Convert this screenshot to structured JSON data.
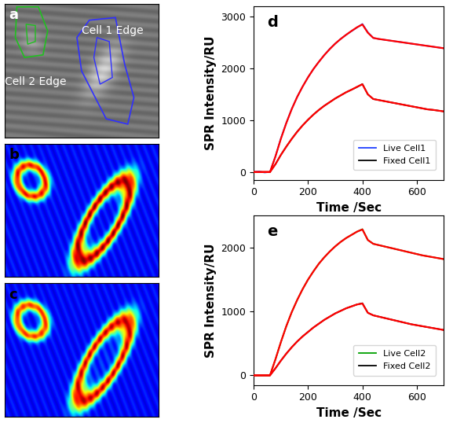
{
  "images": [
    {
      "panel": "a",
      "annotations": [
        "Cell 1 Edge",
        "Cell 2 Edge"
      ]
    },
    {
      "panel": "b"
    },
    {
      "panel": "c"
    }
  ],
  "chart_data": [
    {
      "type": "line",
      "panel": "d",
      "x_label": "Time /Sec",
      "y_label": "SPR Intensity/RU",
      "xlim": [
        0,
        700
      ],
      "xticks": [
        0,
        200,
        400,
        600
      ],
      "ylim": [
        -150,
        3200
      ],
      "yticks": [
        0,
        1000,
        2000,
        3000
      ],
      "legend": "lower right",
      "x": [
        0,
        20,
        40,
        60,
        80,
        100,
        120,
        140,
        160,
        180,
        200,
        220,
        240,
        260,
        280,
        300,
        320,
        340,
        360,
        380,
        400,
        420,
        440,
        460,
        480,
        500,
        520,
        540,
        560,
        580,
        600,
        620,
        640,
        660,
        680,
        700
      ],
      "series": [
        {
          "name": "Live Cell1",
          "color": "#1f3fff",
          "values": [
            0,
            10,
            -10,
            0,
            300,
            650,
            950,
            1220,
            1450,
            1650,
            1830,
            1990,
            2130,
            2260,
            2380,
            2480,
            2570,
            2650,
            2720,
            2790,
            2860,
            2700,
            2590,
            2570,
            2555,
            2540,
            2525,
            2510,
            2495,
            2480,
            2465,
            2450,
            2435,
            2420,
            2405,
            2390
          ]
        },
        {
          "name": "Fixed Cell1",
          "color": "#000000",
          "values": [
            0,
            0,
            0,
            0,
            150,
            330,
            490,
            640,
            780,
            900,
            1010,
            1110,
            1200,
            1280,
            1350,
            1420,
            1480,
            1540,
            1590,
            1640,
            1700,
            1500,
            1410,
            1390,
            1370,
            1350,
            1330,
            1310,
            1290,
            1270,
            1250,
            1230,
            1210,
            1200,
            1185,
            1170
          ]
        },
        {
          "color": "#ff0000",
          "values": [
            0,
            0,
            0,
            0,
            300,
            640,
            945,
            1215,
            1450,
            1650,
            1830,
            1990,
            2130,
            2260,
            2375,
            2480,
            2570,
            2650,
            2725,
            2795,
            2850,
            2690,
            2590,
            2570,
            2555,
            2540,
            2525,
            2510,
            2495,
            2480,
            2465,
            2450,
            2435,
            2420,
            2405,
            2390
          ]
        },
        {
          "color": "#ff0000",
          "values": [
            0,
            0,
            0,
            0,
            150,
            330,
            490,
            640,
            775,
            900,
            1010,
            1110,
            1200,
            1280,
            1350,
            1420,
            1480,
            1540,
            1590,
            1645,
            1695,
            1500,
            1410,
            1390,
            1370,
            1350,
            1330,
            1310,
            1290,
            1270,
            1250,
            1230,
            1210,
            1200,
            1185,
            1170
          ]
        }
      ]
    },
    {
      "type": "line",
      "panel": "e",
      "x_label": "Time /Sec",
      "y_label": "SPR Intensity/RU",
      "xlim": [
        0,
        700
      ],
      "xticks": [
        0,
        200,
        400,
        600
      ],
      "ylim": [
        -150,
        2500
      ],
      "yticks": [
        0,
        1000,
        2000
      ],
      "legend": "lower right",
      "x": [
        0,
        20,
        40,
        60,
        80,
        100,
        120,
        140,
        160,
        180,
        200,
        220,
        240,
        260,
        280,
        300,
        320,
        340,
        360,
        380,
        400,
        420,
        440,
        460,
        480,
        500,
        520,
        540,
        560,
        580,
        600,
        620,
        640,
        660,
        680,
        700
      ],
      "series": [
        {
          "name": "Live Cell2",
          "color": "#00a000",
          "values": [
            0,
            0,
            0,
            0,
            250,
            520,
            770,
            990,
            1180,
            1350,
            1500,
            1630,
            1750,
            1850,
            1940,
            2020,
            2090,
            2150,
            2200,
            2250,
            2290,
            2120,
            2060,
            2040,
            2020,
            2000,
            1980,
            1960,
            1940,
            1920,
            1900,
            1880,
            1865,
            1850,
            1835,
            1820
          ]
        },
        {
          "name": "Fixed Cell2",
          "color": "#000000",
          "values": [
            0,
            0,
            0,
            0,
            110,
            230,
            340,
            440,
            530,
            610,
            680,
            750,
            810,
            870,
            920,
            970,
            1010,
            1050,
            1080,
            1110,
            1130,
            980,
            940,
            920,
            900,
            880,
            860,
            840,
            820,
            800,
            785,
            770,
            755,
            740,
            725,
            710
          ]
        },
        {
          "color": "#ff0000",
          "values": [
            0,
            0,
            0,
            0,
            250,
            520,
            770,
            990,
            1180,
            1350,
            1500,
            1630,
            1750,
            1850,
            1940,
            2020,
            2090,
            2150,
            2200,
            2250,
            2285,
            2120,
            2060,
            2040,
            2020,
            2000,
            1980,
            1960,
            1940,
            1920,
            1900,
            1880,
            1865,
            1850,
            1835,
            1820
          ]
        },
        {
          "color": "#ff0000",
          "values": [
            0,
            0,
            0,
            0,
            110,
            230,
            340,
            440,
            530,
            610,
            680,
            750,
            810,
            870,
            920,
            970,
            1010,
            1050,
            1080,
            1110,
            1125,
            980,
            940,
            920,
            900,
            880,
            860,
            840,
            820,
            800,
            785,
            770,
            755,
            740,
            725,
            710
          ]
        }
      ]
    }
  ]
}
